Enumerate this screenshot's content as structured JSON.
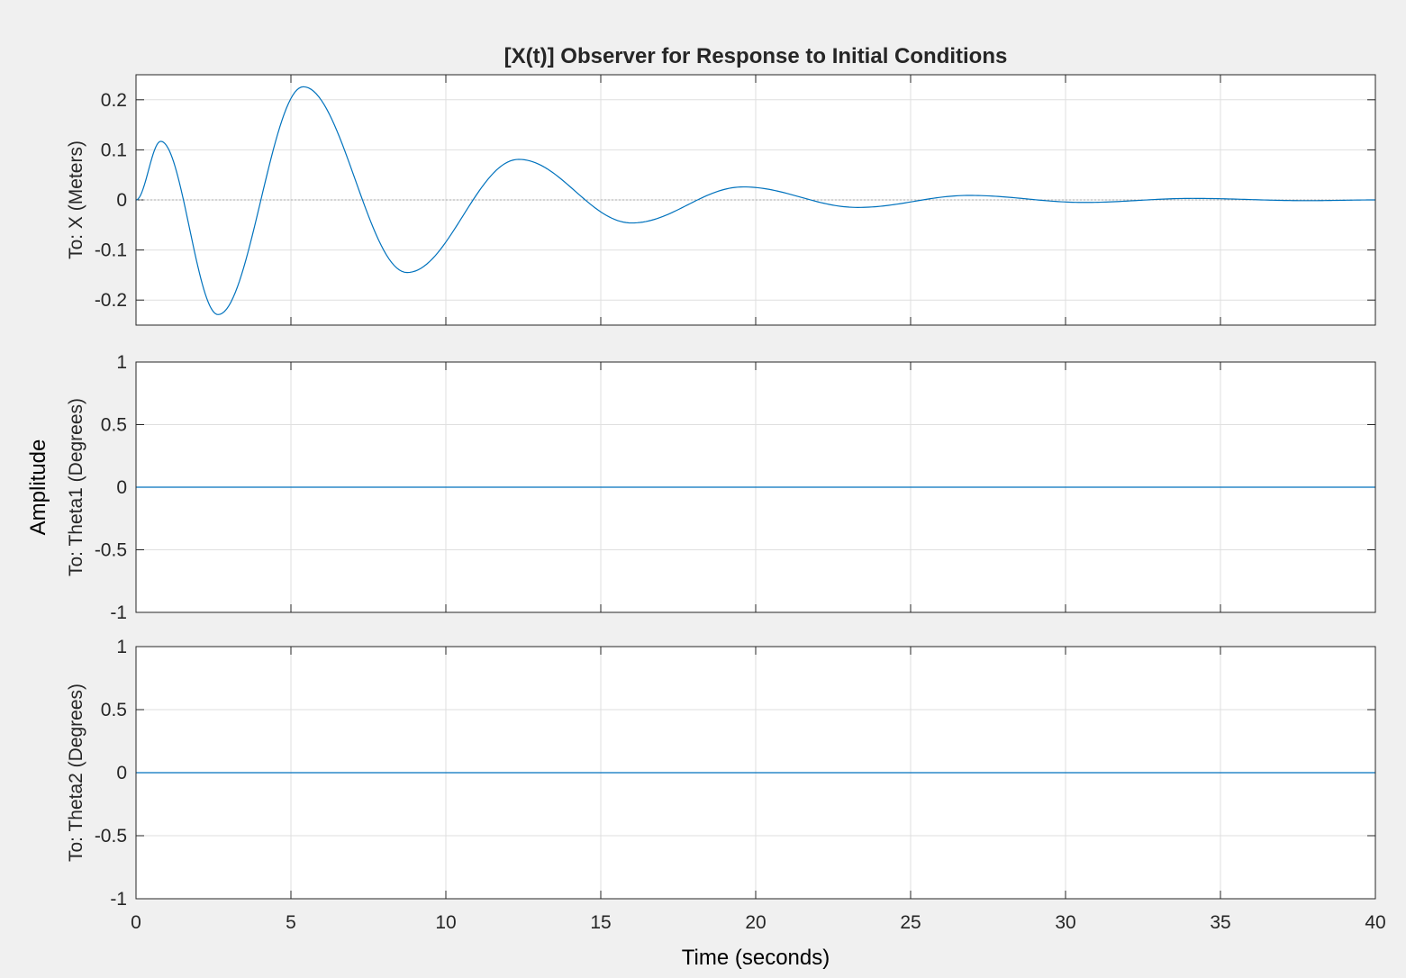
{
  "chart_data": {
    "type": "line",
    "title": "[X(t)] Observer for Response to Initial Conditions",
    "xlabel": "Time (seconds)",
    "ylabel": "Amplitude",
    "xlim": [
      0,
      40
    ],
    "x_ticks": [
      "0",
      "5",
      "10",
      "15",
      "20",
      "25",
      "30",
      "35",
      "40"
    ],
    "grid": true,
    "line_color": "#0072bd",
    "subplots": [
      {
        "ylabel": "To: X (Meters)",
        "ylim": [
          -0.25,
          0.25
        ],
        "y_ticks": [
          0.2,
          0.1,
          0,
          -0.1,
          -0.2
        ],
        "y_tick_labels": [
          "0.2",
          "0.1",
          "0",
          "-0.1",
          "-0.2"
        ],
        "zero_reference_line": true,
        "series": [
          {
            "x": [
              0,
              0.8,
              2.65,
              5.4,
              8.75,
              12.35,
              16.0,
              19.6,
              23.3,
              26.9,
              30.6,
              34.1,
              37.8,
              40
            ],
            "values": [
              0,
              0.117,
              -0.229,
              0.226,
              -0.145,
              0.081,
              -0.046,
              0.026,
              -0.015,
              0.009,
              -0.005,
              0.003,
              -0.0015,
              0
            ]
          }
        ]
      },
      {
        "ylabel": "To: Theta1 (Degrees)",
        "ylim": [
          -1,
          1
        ],
        "y_ticks": [
          1,
          0.5,
          0,
          -0.5,
          -1
        ],
        "y_tick_labels": [
          "1",
          "0.5",
          "0",
          "-0.5",
          "-1"
        ],
        "zero_reference_line": false,
        "series": [
          {
            "x": [
              0,
              40
            ],
            "values": [
              0,
              0
            ]
          }
        ]
      },
      {
        "ylabel": "To: Theta2 (Degrees)",
        "ylim": [
          -1,
          1
        ],
        "y_ticks": [
          1,
          0.5,
          0,
          -0.5,
          -1
        ],
        "y_tick_labels": [
          "1",
          "0.5",
          "0",
          "-0.5",
          "-1"
        ],
        "zero_reference_line": false,
        "series": [
          {
            "x": [
              0,
              40
            ],
            "values": [
              0,
              0
            ]
          }
        ]
      }
    ]
  }
}
